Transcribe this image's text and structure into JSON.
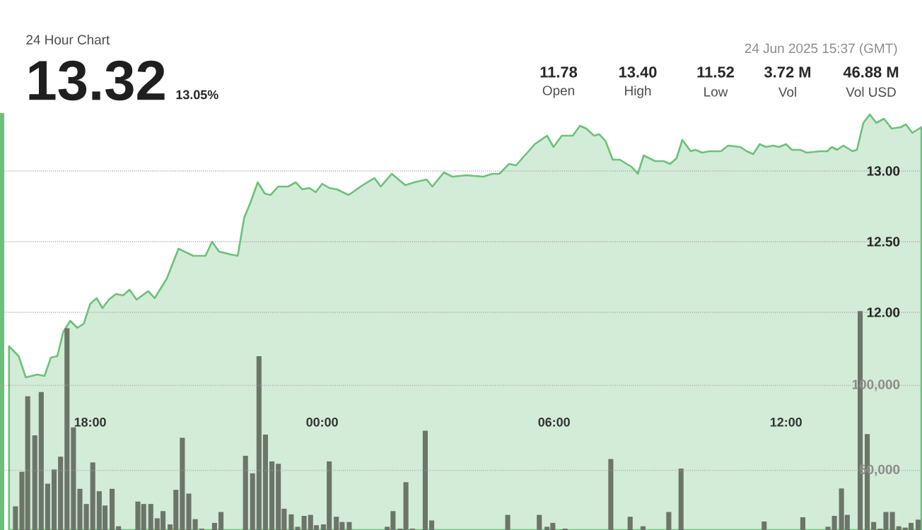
{
  "chart_data": {
    "type": "area",
    "subtitle": "24 Hour Chart",
    "annotations": [
      "13.32",
      "13.05%",
      "11.78",
      "Open",
      "13.40",
      "High",
      "11.52",
      "Low",
      "3.72 M",
      "Vol",
      "46.88 M",
      "Vol USD",
      "24 Jun 2025 15:37 (GMT)"
    ],
    "xlim": [
      "2025-06-23T15:40",
      "2025-06-24T15:31"
    ],
    "xticks": [
      {
        "value": "2025-06-23T18:00",
        "label": "18:00"
      },
      {
        "value": "2025-06-24T00:00",
        "label": "00:00"
      },
      {
        "value": "2025-06-24T06:00",
        "label": "06:00"
      },
      {
        "value": "2025-06-24T12:00",
        "label": "12:00"
      }
    ],
    "ylim": [
      10.46,
      13.41
    ],
    "yticks": [
      {
        "value": 12,
        "label": "12.00"
      },
      {
        "value": 12.5,
        "label": "12.50"
      },
      {
        "value": 13,
        "label": "13.00"
      }
    ],
    "y2lim": [
      15000,
      260000
    ],
    "y2ticks": [
      {
        "value": 50000,
        "label": "50,000"
      },
      {
        "value": 100000,
        "label": "100,000"
      }
    ],
    "grid": "y",
    "series": [
      {
        "color": "#6cc17a",
        "x": [
          "2025-06-23T15:54",
          "2025-06-23T16:09",
          "2025-06-23T16:20",
          "2025-06-23T16:38",
          "2025-06-23T16:49",
          "2025-06-23T16:59",
          "2025-06-23T17:09",
          "2025-06-23T17:18",
          "2025-06-23T17:29",
          "2025-06-23T17:40",
          "2025-06-23T17:50",
          "2025-06-23T18:00",
          "2025-06-23T18:10",
          "2025-06-23T18:19",
          "2025-06-23T18:29",
          "2025-06-23T18:40",
          "2025-06-23T18:51",
          "2025-06-23T19:01",
          "2025-06-23T19:12",
          "2025-06-23T19:30",
          "2025-06-23T19:40",
          "2025-06-23T19:59",
          "2025-06-23T20:17",
          "2025-06-23T20:40",
          "2025-06-23T20:59",
          "2025-06-23T21:09",
          "2025-06-23T21:20",
          "2025-06-23T21:38",
          "2025-06-23T21:49",
          "2025-06-23T21:59",
          "2025-06-23T22:09",
          "2025-06-23T22:20",
          "2025-06-23T22:31",
          "2025-06-23T22:40",
          "2025-06-23T22:52",
          "2025-06-23T23:07",
          "2025-06-23T23:19",
          "2025-06-23T23:29",
          "2025-06-23T23:40",
          "2025-06-23T23:50",
          "2025-06-24T00:00",
          "2025-06-24T00:11",
          "2025-06-24T00:23",
          "2025-06-24T00:41",
          "2025-06-24T01:03",
          "2025-06-24T01:21",
          "2025-06-24T01:31",
          "2025-06-24T01:48",
          "2025-06-24T02:09",
          "2025-06-24T02:23",
          "2025-06-24T02:42",
          "2025-06-24T02:51",
          "2025-06-24T03:09",
          "2025-06-24T03:22",
          "2025-06-24T03:44",
          "2025-06-24T04:10",
          "2025-06-24T04:24",
          "2025-06-24T04:35",
          "2025-06-24T04:50",
          "2025-06-24T05:01",
          "2025-06-24T05:30",
          "2025-06-24T05:49",
          "2025-06-24T05:59",
          "2025-06-24T06:12",
          "2025-06-24T06:29",
          "2025-06-24T06:40",
          "2025-06-24T06:50",
          "2025-06-24T07:02",
          "2025-06-24T07:10",
          "2025-06-24T07:20",
          "2025-06-24T07:31",
          "2025-06-24T07:42",
          "2025-06-24T08:00",
          "2025-06-24T08:10",
          "2025-06-24T08:19",
          "2025-06-24T08:37",
          "2025-06-24T08:50",
          "2025-06-24T09:00",
          "2025-06-24T09:10",
          "2025-06-24T09:19",
          "2025-06-24T09:32",
          "2025-06-24T09:39",
          "2025-06-24T09:50",
          "2025-06-24T10:01",
          "2025-06-24T10:19",
          "2025-06-24T10:30",
          "2025-06-24T10:49",
          "2025-06-24T10:59",
          "2025-06-24T11:09",
          "2025-06-24T11:19",
          "2025-06-24T11:29",
          "2025-06-24T11:40",
          "2025-06-24T11:49",
          "2025-06-24T12:00",
          "2025-06-24T12:09",
          "2025-06-24T12:22",
          "2025-06-24T12:32",
          "2025-06-24T12:53",
          "2025-06-24T13:04",
          "2025-06-24T13:11",
          "2025-06-24T13:19",
          "2025-06-24T13:29",
          "2025-06-24T13:43",
          "2025-06-24T13:50",
          "2025-06-24T14:00",
          "2025-06-24T14:10",
          "2025-06-24T14:20",
          "2025-06-24T14:32",
          "2025-06-24T14:44",
          "2025-06-24T14:58",
          "2025-06-24T15:06",
          "2025-06-24T15:16",
          "2025-06-24T15:30"
        ],
        "values": [
          11.76,
          11.69,
          11.54,
          11.56,
          11.55,
          11.68,
          11.69,
          11.86,
          11.94,
          11.89,
          11.92,
          12.06,
          12.1,
          12.03,
          12.09,
          12.13,
          12.12,
          12.16,
          12.09,
          12.15,
          12.1,
          12.24,
          12.45,
          12.4,
          12.4,
          12.5,
          12.43,
          12.41,
          12.4,
          12.67,
          12.78,
          12.92,
          12.84,
          12.83,
          12.89,
          12.89,
          12.92,
          12.87,
          12.88,
          12.85,
          12.91,
          12.88,
          12.87,
          12.83,
          12.9,
          12.95,
          12.89,
          12.98,
          12.9,
          12.92,
          12.94,
          12.89,
          12.99,
          12.96,
          12.97,
          12.96,
          12.98,
          12.98,
          13.05,
          13.04,
          13.19,
          13.25,
          13.17,
          13.25,
          13.25,
          13.32,
          13.3,
          13.25,
          13.26,
          13.21,
          13.08,
          13.08,
          13.03,
          12.98,
          13.11,
          13.07,
          13.07,
          13.05,
          13.09,
          13.22,
          13.14,
          13.15,
          13.13,
          13.14,
          13.14,
          13.18,
          13.17,
          13.14,
          13.12,
          13.19,
          13.17,
          13.18,
          13.17,
          13.19,
          13.15,
          13.15,
          13.13,
          13.14,
          13.14,
          13.17,
          13.15,
          13.18,
          13.14,
          13.15,
          13.34,
          13.4,
          13.34,
          13.37,
          13.3,
          13.31,
          13.33,
          13.27,
          13.31
        ]
      },
      {
        "type": "bar",
        "axis": "y2",
        "color": "#6b7568",
        "x": [
          "2025-06-23T16:04",
          "2025-06-23T16:14",
          "2025-06-23T16:23",
          "2025-06-23T16:34",
          "2025-06-23T16:44",
          "2025-06-23T16:54",
          "2025-06-23T17:04",
          "2025-06-23T17:14",
          "2025-06-23T17:24",
          "2025-06-23T17:34",
          "2025-06-23T17:44",
          "2025-06-23T17:54",
          "2025-06-23T18:04",
          "2025-06-23T18:14",
          "2025-06-23T18:23",
          "2025-06-23T18:34",
          "2025-06-23T18:44",
          "2025-06-23T19:14",
          "2025-06-23T19:23",
          "2025-06-23T19:34",
          "2025-06-23T19:44",
          "2025-06-23T19:53",
          "2025-06-23T20:04",
          "2025-06-23T20:13",
          "2025-06-23T20:23",
          "2025-06-23T20:33",
          "2025-06-23T20:43",
          "2025-06-23T20:53",
          "2025-06-23T21:13",
          "2025-06-23T21:23",
          "2025-06-23T22:01",
          "2025-06-23T22:12",
          "2025-06-23T22:22",
          "2025-06-23T22:32",
          "2025-06-23T22:42",
          "2025-06-23T22:52",
          "2025-06-23T23:01",
          "2025-06-23T23:12",
          "2025-06-23T23:22",
          "2025-06-23T23:32",
          "2025-06-23T23:42",
          "2025-06-23T23:51",
          "2025-06-24T00:02",
          "2025-06-24T00:11",
          "2025-06-24T00:22",
          "2025-06-24T00:31",
          "2025-06-24T00:42",
          "2025-06-24T01:41",
          "2025-06-24T01:50",
          "2025-06-24T02:01",
          "2025-06-24T02:10",
          "2025-06-24T02:20",
          "2025-06-24T02:40",
          "2025-06-24T02:50",
          "2025-06-24T04:48",
          "2025-06-24T05:37",
          "2025-06-24T05:49",
          "2025-06-24T05:58",
          "2025-06-24T06:17",
          "2025-06-24T07:28",
          "2025-06-24T07:58",
          "2025-06-24T08:18",
          "2025-06-24T08:58",
          "2025-06-24T09:17",
          "2025-06-24T11:26",
          "2025-06-24T12:26",
          "2025-06-24T13:05",
          "2025-06-24T13:15",
          "2025-06-24T13:26",
          "2025-06-24T13:35",
          "2025-06-24T13:55",
          "2025-06-24T14:06",
          "2025-06-24T14:16",
          "2025-06-24T14:26",
          "2025-06-24T14:35",
          "2025-06-24T14:45",
          "2025-06-24T14:55",
          "2025-06-24T15:05",
          "2025-06-24T15:14",
          "2025-06-24T15:25"
        ],
        "values": [
          28900,
          49200,
          93600,
          70600,
          96100,
          42200,
          50600,
          58100,
          133600,
          75300,
          39200,
          30300,
          54700,
          37800,
          29400,
          39200,
          17200,
          31700,
          30300,
          30300,
          21900,
          26100,
          18300,
          38600,
          69200,
          36400,
          21400,
          15800,
          19200,
          25600,
          58600,
          48300,
          117200,
          71100,
          55300,
          53900,
          27500,
          24200,
          16900,
          23300,
          23900,
          17800,
          18300,
          55300,
          22800,
          19700,
          19700,
          16900,
          26100,
          15800,
          43100,
          15800,
          73300,
          20600,
          23900,
          23900,
          16900,
          19200,
          15800,
          56700,
          22800,
          17200,
          25600,
          51100,
          20000,
          22500,
          16900,
          23300,
          39400,
          23900,
          143600,
          71400,
          19700,
          15800,
          25600,
          25600,
          17200,
          16400,
          19200,
          21100
        ]
      }
    ]
  }
}
